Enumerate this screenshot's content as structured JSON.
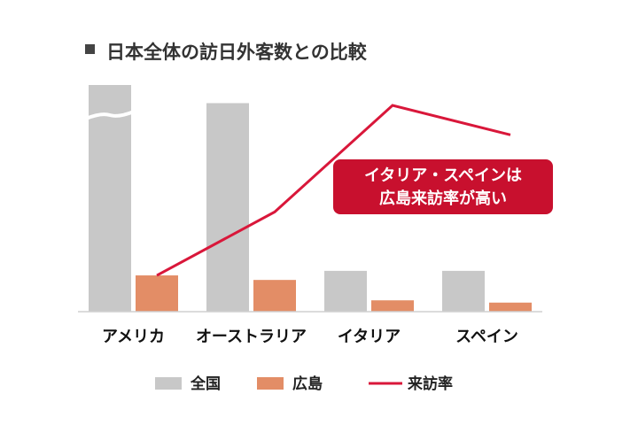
{
  "chart_data": {
    "type": "bar",
    "title": "日本全体の訪日外客数との比較",
    "categories": [
      "アメリカ",
      "オーストラリア",
      "イタリア",
      "スペイン"
    ],
    "series": [
      {
        "name": "全国",
        "kind": "bar",
        "color": "#c8c8c8",
        "values": [
          100,
          92,
          18,
          18
        ]
      },
      {
        "name": "広島",
        "kind": "bar",
        "color": "#e38d66",
        "values": [
          16,
          14,
          5,
          4
        ]
      },
      {
        "name": "来訪率",
        "kind": "line",
        "color": "#d9173a",
        "values": [
          16,
          44,
          91,
          78
        ]
      }
    ],
    "ylim": [
      0,
      100
    ],
    "axis_break": {
      "series": "全国",
      "category": "アメリカ"
    },
    "legend": "bottom",
    "grid": false,
    "annotation": {
      "lines": [
        "イタリア・スペインは",
        "広島来訪率が高い"
      ],
      "color": "#c8102e"
    }
  }
}
